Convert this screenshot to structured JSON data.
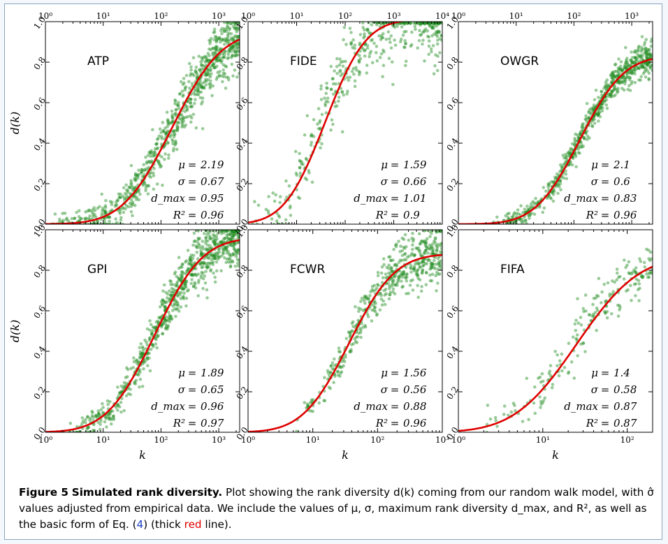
{
  "caption": {
    "label": "Figure 5",
    "title": "Simulated rank diversity.",
    "text_1": "Plot showing the rank diversity d(k) coming from our random walk model, with σ̂ values adjusted from empirical data. We include the values of μ, σ, maximum rank diversity d_max, and R², as well as the basic form of Eq. (",
    "eq_ref": "4",
    "text_2": ") (thick ",
    "red_word": "red",
    "text_3": " line)."
  },
  "colors": {
    "fit": "#e00000",
    "scatter": "#1e8c1e",
    "eq_ref": "#1a3fbf",
    "frame": "#8aa3c3"
  },
  "chart_data": [
    {
      "type": "scatter",
      "title": "ATP",
      "xscale": "log",
      "xlim": [
        1,
        2300
      ],
      "ylim": [
        0,
        1
      ],
      "x_ticks": [
        "10⁰",
        "10¹",
        "10²",
        "10³"
      ],
      "y_ticks": [
        "0.0",
        "0.2",
        "0.4",
        "0.6",
        "0.8",
        "1.0"
      ],
      "ylabel": "d(k)",
      "xlabel": "",
      "fit": {
        "mu": 2.19,
        "sigma": 0.67,
        "dmax": 0.95
      },
      "stats": {
        "mu": "2.19",
        "sigma": "0.67",
        "dmax": "0.95",
        "r2": "0.96"
      },
      "scatter": {
        "n": 800,
        "noise": 0.02,
        "growth": 0.06,
        "xstart": 1,
        "xend": 2300,
        "plateau": 0.9
      }
    },
    {
      "type": "scatter",
      "title": "FIDE",
      "xscale": "log",
      "xlim": [
        1,
        10000
      ],
      "ylim": [
        0,
        1
      ],
      "x_ticks": [
        "10⁰",
        "10¹",
        "10²",
        "10³",
        "10⁴"
      ],
      "y_ticks": [
        "0.0",
        "0.2",
        "0.4",
        "0.6",
        "0.8",
        "1.0"
      ],
      "ylabel": "",
      "xlabel": "",
      "fit": {
        "mu": 1.59,
        "sigma": 0.66,
        "dmax": 1.01
      },
      "stats": {
        "mu": "1.59",
        "sigma": "0.66",
        "dmax": "1.01",
        "r2": "0.9"
      },
      "scatter": {
        "n": 450,
        "noise": 0.09,
        "growth": 0.0,
        "xstart": 1,
        "xend": 10000,
        "plateau": 0.97,
        "bias": 0.06
      }
    },
    {
      "type": "scatter",
      "title": "OWGR",
      "xscale": "log",
      "xlim": [
        1,
        2300
      ],
      "ylim": [
        0,
        1
      ],
      "x_ticks": [
        "10⁰",
        "10¹",
        "10²",
        "10³"
      ],
      "y_ticks": [
        "0.0",
        "0.2",
        "0.4",
        "0.6",
        "0.8",
        "1.0"
      ],
      "ylabel": "",
      "xlabel": "",
      "fit": {
        "mu": 2.1,
        "sigma": 0.6,
        "dmax": 0.83
      },
      "stats": {
        "mu": "2.1",
        "sigma": "0.6",
        "dmax": "0.83",
        "r2": "0.96"
      },
      "scatter": {
        "n": 700,
        "noise": 0.015,
        "growth": 0.03,
        "xstart": 3,
        "xend": 2300,
        "plateau": 0.8
      }
    },
    {
      "type": "scatter",
      "title": "GPI",
      "xscale": "log",
      "xlim": [
        1,
        2300
      ],
      "ylim": [
        0,
        1
      ],
      "x_ticks": [
        "10⁰",
        "10¹",
        "10²",
        "10³"
      ],
      "y_ticks": [
        "0.0",
        "0.2",
        "0.4",
        "0.6",
        "0.8",
        "1.0"
      ],
      "ylabel": "d(k)",
      "xlabel": "k",
      "fit": {
        "mu": 1.89,
        "sigma": 0.65,
        "dmax": 0.96
      },
      "stats": {
        "mu": "1.89",
        "sigma": "0.65",
        "dmax": "0.96",
        "r2": "0.97"
      },
      "scatter": {
        "n": 800,
        "noise": 0.025,
        "growth": 0.05,
        "xstart": 2,
        "xend": 2300,
        "plateau": 0.95
      }
    },
    {
      "type": "scatter",
      "title": "FCWR",
      "xscale": "log",
      "xlim": [
        1,
        1000
      ],
      "ylim": [
        0,
        1
      ],
      "x_ticks": [
        "10⁰",
        "10¹",
        "10²",
        "10³"
      ],
      "y_ticks": [
        "0.0",
        "0.2",
        "0.4",
        "0.6",
        "0.8",
        "1.0"
      ],
      "ylabel": "",
      "xlabel": "k",
      "fit": {
        "mu": 1.56,
        "sigma": 0.56,
        "dmax": 0.88
      },
      "stats": {
        "mu": "1.56",
        "sigma": "0.56",
        "dmax": "0.88",
        "r2": "0.96"
      },
      "scatter": {
        "n": 500,
        "noise": 0.03,
        "growth": 0.04,
        "xstart": 5,
        "xend": 1000,
        "plateau": 0.88
      }
    },
    {
      "type": "scatter",
      "title": "FIFA",
      "xscale": "log",
      "xlim": [
        1,
        200
      ],
      "ylim": [
        0,
        1
      ],
      "x_ticks": [
        "10⁰",
        "10¹",
        "10²"
      ],
      "y_ticks": [
        "0.0",
        "0.2",
        "0.4",
        "0.6",
        "0.8",
        "1.0"
      ],
      "ylabel": "",
      "xlabel": "k",
      "fit": {
        "mu": 1.4,
        "sigma": 0.58,
        "dmax": 0.87
      },
      "stats": {
        "mu": "1.4",
        "sigma": "0.58",
        "dmax": "0.87",
        "r2": "0.87"
      },
      "scatter": {
        "n": 200,
        "noise": 0.06,
        "growth": 0.0,
        "xstart": 2,
        "xend": 200,
        "plateau": 0.7,
        "bias": 0.03
      }
    }
  ]
}
